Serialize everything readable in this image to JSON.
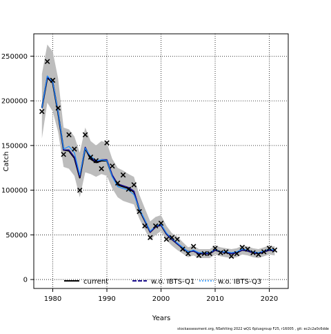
{
  "chart_data": {
    "type": "line",
    "xlabel": "Years",
    "ylabel": "Catch",
    "xlim": [
      1976.5,
      2023.5
    ],
    "ylim": [
      -10000,
      275000
    ],
    "x_ticks": [
      1980,
      1990,
      2000,
      2010,
      2020
    ],
    "y_ticks": [
      0,
      50000,
      100000,
      150000,
      200000,
      250000
    ],
    "grid": true,
    "grid_style": "dotted",
    "legend_position": "bottom",
    "footer": "stockassessment.org, NSehlting 2022 wQ1 6plusgroup F25, r16005 , git: ec2c2a0c6dde",
    "colors": {
      "band": "#bdbdbd",
      "current": "#000000",
      "ibts_q1": "#1a0d8c",
      "ibts_q3": "#1e90ff",
      "observed": "#000000"
    },
    "years": [
      1978,
      1979,
      1980,
      1981,
      1982,
      1983,
      1984,
      1985,
      1986,
      1987,
      1988,
      1989,
      1990,
      1991,
      1992,
      1993,
      1994,
      1995,
      1996,
      1997,
      1998,
      1999,
      2000,
      2001,
      2002,
      2003,
      2004,
      2005,
      2006,
      2007,
      2008,
      2009,
      2010,
      2011,
      2012,
      2013,
      2014,
      2015,
      2016,
      2017,
      2018,
      2019,
      2020,
      2021
    ],
    "band_upper": [
      230000,
      263000,
      255000,
      225000,
      170000,
      168000,
      160000,
      142000,
      170000,
      155000,
      150000,
      155000,
      153000,
      135000,
      125000,
      122000,
      118000,
      115000,
      95000,
      80000,
      65000,
      70000,
      72000,
      60000,
      52000,
      48000,
      42000,
      36000,
      38000,
      34000,
      34000,
      34000,
      38000,
      36000,
      35000,
      34000,
      35000,
      38000,
      37000,
      35000,
      34000,
      36000,
      38000,
      37000
    ],
    "band_lower": [
      158000,
      198000,
      188000,
      165000,
      126000,
      124000,
      116000,
      92000,
      120000,
      118000,
      115000,
      118000,
      116000,
      102000,
      92000,
      88000,
      86000,
      84000,
      68000,
      56000,
      44000,
      50000,
      54000,
      44000,
      38000,
      33000,
      29000,
      25000,
      27000,
      24000,
      24000,
      24000,
      28000,
      26000,
      25000,
      24000,
      25000,
      28000,
      27000,
      25000,
      24000,
      26000,
      28000,
      27000
    ],
    "observed": [
      188000,
      244000,
      223000,
      192000,
      140000,
      162000,
      146000,
      100000,
      162000,
      137000,
      133000,
      124000,
      153000,
      127000,
      108000,
      117000,
      101000,
      106000,
      76000,
      60000,
      47000,
      60000,
      63000,
      45000,
      47000,
      45000,
      34000,
      29000,
      37000,
      27000,
      29000,
      29000,
      35000,
      30000,
      31000,
      26000,
      29000,
      36000,
      34000,
      30000,
      28000,
      31000,
      35000,
      33000
    ],
    "series": [
      {
        "name": "current",
        "values": [
          192000,
          226000,
          220000,
          186000,
          145000,
          144000,
          136000,
          114000,
          147000,
          135000,
          131000,
          133000,
          133000,
          116000,
          106000,
          104000,
          102000,
          98000,
          78000,
          66000,
          53000,
          59000,
          61000,
          51000,
          45000,
          40000,
          35000,
          31000,
          32000,
          29000,
          29000,
          29000,
          33000,
          31000,
          30000,
          29000,
          30000,
          33000,
          32000,
          30000,
          29000,
          31000,
          33000,
          32000
        ]
      },
      {
        "name": "w.o. IBTS-Q1",
        "values": [
          192000,
          227000,
          221000,
          187000,
          145000,
          145000,
          137000,
          115000,
          148000,
          136000,
          132000,
          134000,
          134000,
          117000,
          107000,
          105000,
          103000,
          99000,
          79000,
          66000,
          53000,
          59000,
          61000,
          51000,
          45000,
          40000,
          35000,
          31000,
          32000,
          29000,
          29000,
          29000,
          33000,
          31000,
          30000,
          29000,
          30000,
          33000,
          32000,
          30000,
          29000,
          31000,
          33000,
          32000
        ]
      },
      {
        "name": "w.o. IBTS-Q3",
        "values": [
          192000,
          228000,
          221000,
          187000,
          146000,
          149000,
          142000,
          117000,
          147000,
          138000,
          133000,
          134000,
          133000,
          115000,
          104000,
          102000,
          100000,
          95000,
          79000,
          67000,
          54000,
          60000,
          62000,
          52000,
          46000,
          41000,
          36000,
          31000,
          33000,
          30000,
          30000,
          30000,
          34000,
          31000,
          31000,
          30000,
          31000,
          34000,
          33000,
          31000,
          30000,
          32000,
          34000,
          33000
        ]
      }
    ]
  }
}
